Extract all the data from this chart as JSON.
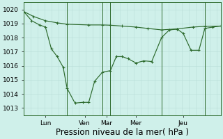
{
  "background_color": "#cff0ea",
  "grid_color_minor": "#b8ddd8",
  "grid_color_major": "#a0ccc8",
  "line_color": "#2d6a2d",
  "xlim": [
    0,
    100
  ],
  "ylim": [
    1012.5,
    1020.5
  ],
  "yticks": [
    1013,
    1014,
    1015,
    1016,
    1017,
    1018,
    1019,
    1020
  ],
  "xlabel": "Pression niveau de la mer( hPa )",
  "xlabel_fontsize": 8.5,
  "tick_fontsize": 6.5,
  "day_sep_x": [
    22,
    40,
    44,
    70,
    92
  ],
  "day_labels": [
    {
      "label": "Lun",
      "x": 11
    },
    {
      "label": "Ven",
      "x": 31
    },
    {
      "label": "Mar",
      "x": 42
    },
    {
      "label": "Mer",
      "x": 57
    },
    {
      "label": "Jeu",
      "x": 81
    }
  ],
  "line1_x": [
    0,
    5,
    11,
    17,
    22,
    33,
    40,
    44,
    50,
    57,
    63,
    70,
    78,
    86,
    92,
    100
  ],
  "line1_y": [
    1019.85,
    1019.5,
    1019.2,
    1019.05,
    1018.95,
    1018.9,
    1018.9,
    1018.88,
    1018.82,
    1018.75,
    1018.65,
    1018.55,
    1018.62,
    1018.75,
    1018.8,
    1018.82
  ],
  "line2_x": [
    0,
    4,
    8,
    11,
    14,
    17,
    20,
    22,
    26,
    30,
    33,
    36,
    40,
    44,
    47,
    50,
    53,
    57,
    61,
    65,
    70,
    74,
    78,
    81,
    85,
    89,
    92,
    96,
    100
  ],
  "line2_y": [
    1019.85,
    1019.2,
    1018.9,
    1018.75,
    1017.2,
    1016.65,
    1015.9,
    1014.4,
    1013.35,
    1013.4,
    1013.4,
    1014.9,
    1015.55,
    1015.65,
    1016.65,
    1016.65,
    1016.5,
    1016.2,
    1016.35,
    1016.3,
    1018.0,
    1018.55,
    1018.6,
    1018.3,
    1017.1,
    1017.1,
    1018.65,
    1018.75,
    1018.82
  ]
}
